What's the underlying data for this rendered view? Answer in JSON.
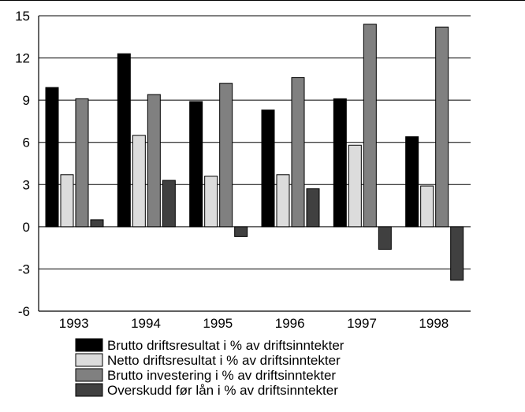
{
  "chart_data": {
    "type": "bar",
    "title": "",
    "xlabel": "",
    "ylabel": "",
    "categories": [
      "1993",
      "1994",
      "1995",
      "1996",
      "1997",
      "1998"
    ],
    "ylim": [
      -6,
      15
    ],
    "yticks": [
      15,
      12,
      9,
      6,
      3,
      0,
      -3,
      -6
    ],
    "ytick_labels": [
      "15",
      "12",
      "9",
      "6",
      "3",
      "0",
      "-3",
      "-6"
    ],
    "grid": "horizontal",
    "legend_position": "bottom",
    "series": [
      {
        "name": "Brutto driftsresultat i % av driftsinntekter",
        "color": "#000000",
        "values": [
          9.9,
          12.3,
          8.9,
          8.3,
          9.1,
          6.4
        ]
      },
      {
        "name": "Netto driftsresultat i % av driftsinntekter",
        "color": "#dcdcdc",
        "values": [
          3.7,
          6.5,
          3.6,
          3.7,
          5.8,
          2.9
        ]
      },
      {
        "name": "Brutto investering i % av driftsinntekter",
        "color": "#808080",
        "values": [
          9.1,
          9.4,
          10.2,
          10.6,
          14.4,
          14.2
        ]
      },
      {
        "name": "Overskudd før lån i % av driftsinntekter",
        "color": "#404040",
        "values": [
          0.5,
          3.3,
          -0.7,
          2.7,
          -1.6,
          -3.8
        ]
      }
    ]
  }
}
